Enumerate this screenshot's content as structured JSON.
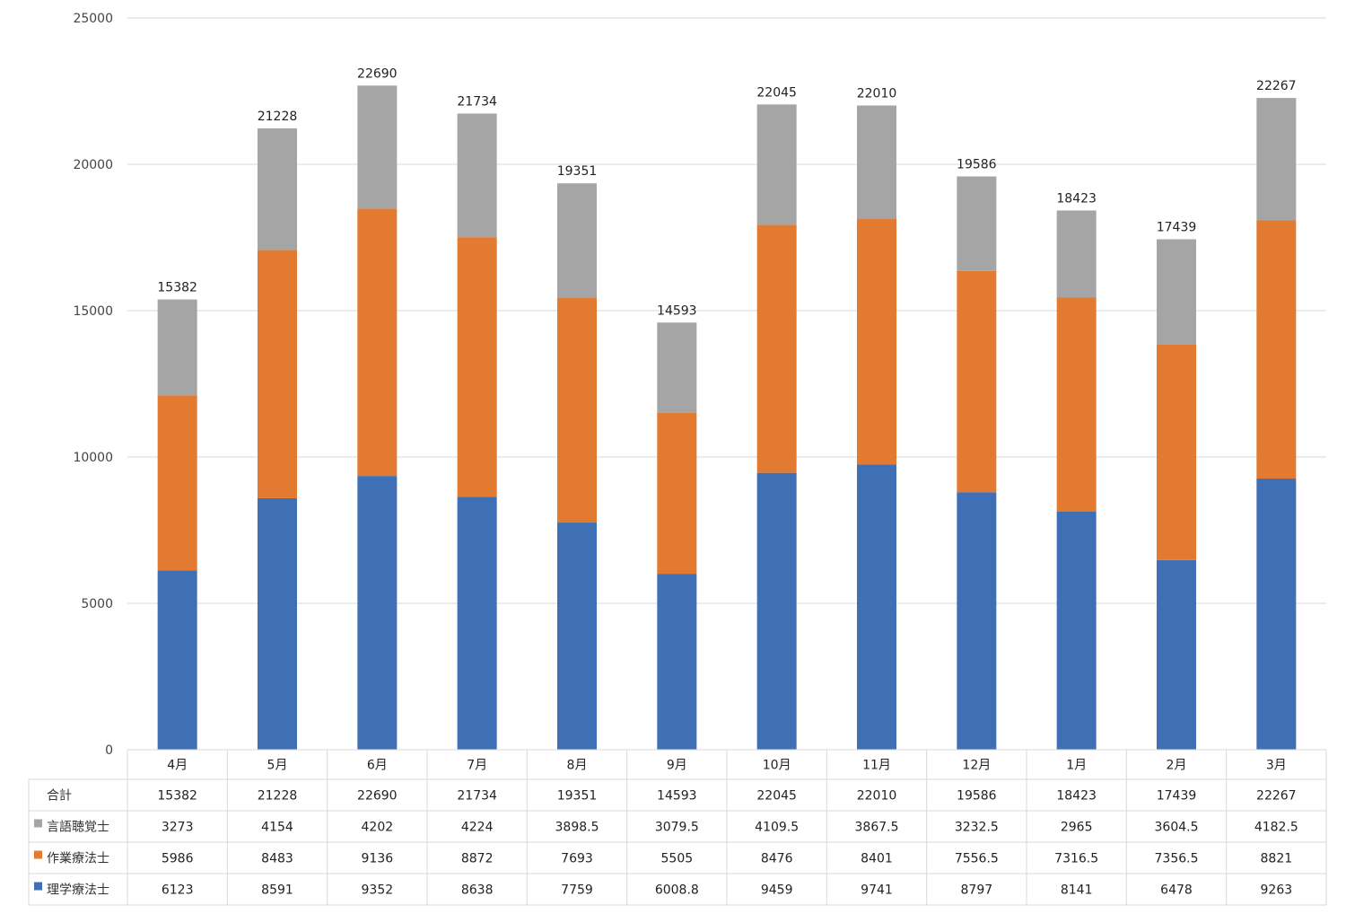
{
  "chart_data": {
    "type": "bar",
    "stacked": true,
    "categories": [
      "4月",
      "5月",
      "6月",
      "7月",
      "8月",
      "9月",
      "10月",
      "11月",
      "12月",
      "1月",
      "2月",
      "3月"
    ],
    "series": [
      {
        "name": "理学療法士",
        "color": "#3f6fb5",
        "values": [
          6123,
          8591,
          9352,
          8638,
          7759,
          6008.8,
          9459,
          9741,
          8797,
          8141,
          6478,
          9263
        ],
        "labels": [
          "6123",
          "8591",
          "9352",
          "8638",
          "7759",
          "6008.8",
          "9459",
          "9741",
          "8797",
          "8141",
          "6478",
          "9263"
        ]
      },
      {
        "name": "作業療法士",
        "color": "#e37a32",
        "values": [
          5986,
          8483,
          9136,
          8872,
          7693,
          5505,
          8476,
          8401,
          7556.5,
          7316.5,
          7356.5,
          8821
        ],
        "labels": [
          "5986",
          "8483",
          "9136",
          "8872",
          "7693",
          "5505",
          "8476",
          "8401",
          "7556.5",
          "7316.5",
          "7356.5",
          "8821"
        ]
      },
      {
        "name": "言語聴覚士",
        "color": "#a5a5a5",
        "values": [
          3273,
          4154,
          4202,
          4224,
          3898.5,
          3079.5,
          4109.5,
          3867.5,
          3232.5,
          2965,
          3604.5,
          4182.5
        ],
        "labels": [
          "3273",
          "4154",
          "4202",
          "4224",
          "3898.5",
          "3079.5",
          "4109.5",
          "3867.5",
          "3232.5",
          "2965",
          "3604.5",
          "4182.5"
        ]
      }
    ],
    "totals": {
      "name": "合計",
      "values": [
        15382,
        21228,
        22690,
        21734,
        19351,
        14593,
        22045,
        22010,
        19586,
        18423,
        17439,
        22267
      ],
      "labels": [
        "15382",
        "21228",
        "22690",
        "21734",
        "19351",
        "14593",
        "22045",
        "22010",
        "19586",
        "18423",
        "17439",
        "22267"
      ]
    },
    "yticks": [
      "0",
      "5000",
      "10000",
      "15000",
      "20000",
      "25000"
    ],
    "ylim": [
      0,
      25000
    ],
    "grid": true,
    "legend": "data-table"
  }
}
